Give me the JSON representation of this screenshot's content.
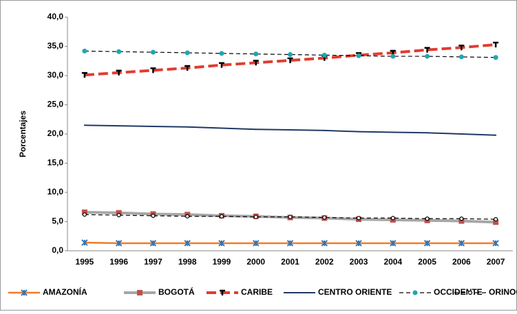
{
  "chart_data": {
    "type": "line",
    "y_label": "Porcentajes",
    "categories": [
      "1995",
      "1996",
      "1997",
      "1998",
      "1999",
      "2000",
      "2001",
      "2002",
      "2003",
      "2004",
      "2005",
      "2006",
      "2007"
    ],
    "ylim": [
      0,
      40
    ],
    "yticks": [
      {
        "value": 0,
        "label": "0,0"
      },
      {
        "value": 5,
        "label": "5,0"
      },
      {
        "value": 10,
        "label": "10,0"
      },
      {
        "value": 15,
        "label": "15,0"
      },
      {
        "value": 20,
        "label": "20,0"
      },
      {
        "value": 25,
        "label": "25,0"
      },
      {
        "value": 30,
        "label": "30,0"
      },
      {
        "value": 35,
        "label": "35,0"
      },
      {
        "value": 40,
        "label": "40,0"
      }
    ],
    "grid": false,
    "legend": "bottom",
    "series": [
      {
        "name": "AMAZONÍA",
        "color": "#f07b28",
        "values": [
          1.4,
          1.3,
          1.3,
          1.3,
          1.3,
          1.3,
          1.3,
          1.3,
          1.3,
          1.3,
          1.3,
          1.3,
          1.3
        ]
      },
      {
        "name": "BOGOTÁ",
        "color": "#a6a6a6",
        "values": [
          6.6,
          6.5,
          6.3,
          6.2,
          6.0,
          5.9,
          5.7,
          5.6,
          5.4,
          5.3,
          5.2,
          5.1,
          4.9
        ]
      },
      {
        "name": "CARIBE",
        "color": "#e03c31",
        "values": [
          30.1,
          30.5,
          30.9,
          31.3,
          31.8,
          32.2,
          32.6,
          33.0,
          33.5,
          33.9,
          34.4,
          34.8,
          35.3
        ]
      },
      {
        "name": "CENTRO ORIENTE",
        "color": "#1f3864",
        "values": [
          21.5,
          21.4,
          21.3,
          21.2,
          21.0,
          20.8,
          20.7,
          20.6,
          20.4,
          20.3,
          20.2,
          20.0,
          19.8
        ]
      },
      {
        "name": "OCCIDENTE",
        "color": "#000000",
        "values": [
          34.2,
          34.1,
          34.0,
          33.9,
          33.8,
          33.7,
          33.6,
          33.5,
          33.4,
          33.3,
          33.3,
          33.2,
          33.1
        ]
      },
      {
        "name": "ORINOQUÍA",
        "color": "#000000",
        "values": [
          6.2,
          6.1,
          6.0,
          5.9,
          5.9,
          5.8,
          5.8,
          5.7,
          5.6,
          5.6,
          5.5,
          5.5,
          5.4
        ]
      }
    ]
  }
}
